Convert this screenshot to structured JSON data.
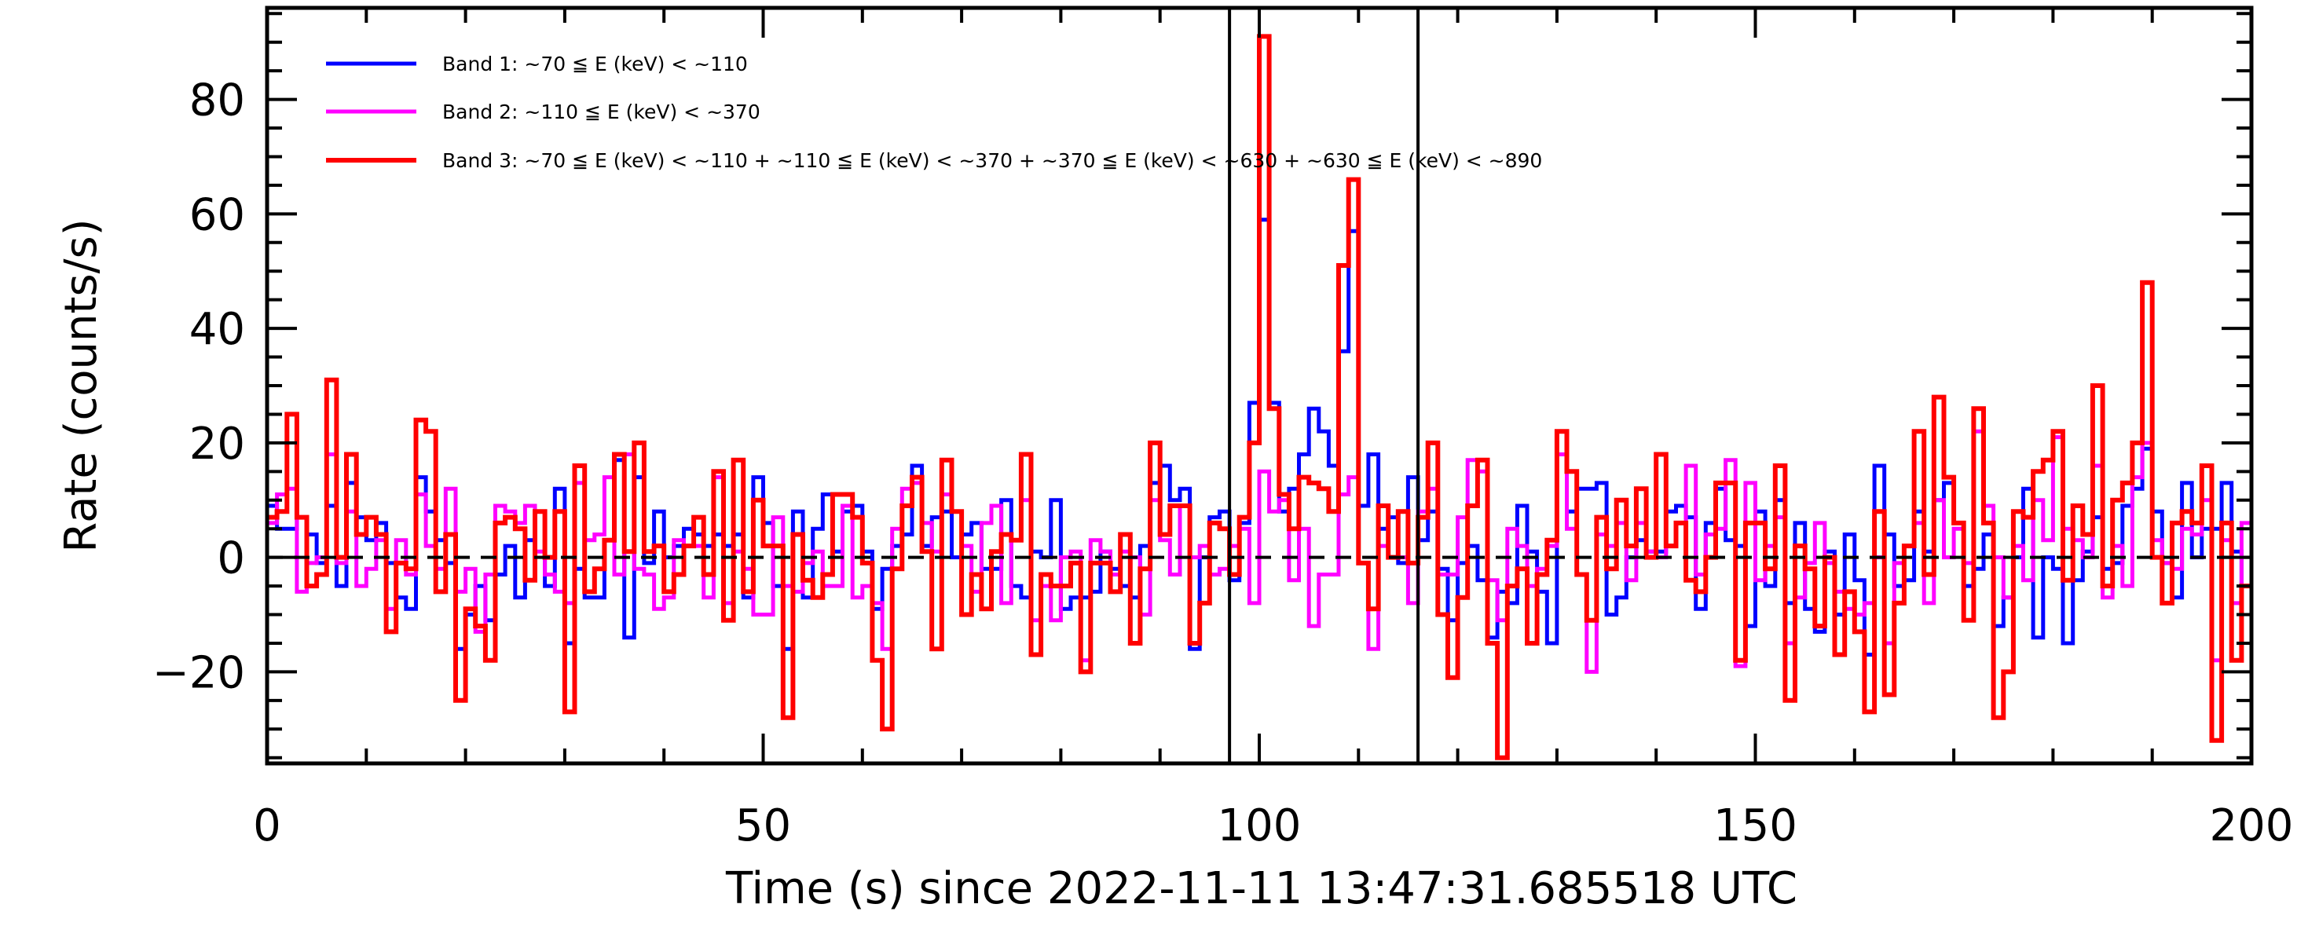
{
  "chart_data": {
    "type": "line",
    "style": "histogram-step",
    "title": "",
    "xlabel": "Time (s) since 2022-11-11 13:47:31.685518 UTC",
    "ylabel": "Rate (counts/s)",
    "xlim": [
      0,
      200
    ],
    "ylim": [
      -36,
      96
    ],
    "bin_width": 1,
    "x_ticks": [
      0,
      50,
      100,
      150,
      200
    ],
    "x_tick_labels": [
      "0",
      "50",
      "100",
      "150",
      "200"
    ],
    "x_minor_step": 10,
    "y_ticks": [
      -20,
      0,
      20,
      40,
      60,
      80
    ],
    "y_tick_labels": [
      "−20",
      "0",
      "20",
      "40",
      "60",
      "80"
    ],
    "y_minor_step": 5,
    "grid": false,
    "legend_position": "top-left",
    "reference_lines": {
      "horizontal_dashed_y": 0,
      "vertical_x": [
        97,
        116
      ]
    },
    "series": [
      {
        "name": "Band 1: ~70 ≦ E (keV) < ~110",
        "color": "#0000ff",
        "values": [
          9,
          5,
          5,
          7,
          4,
          -1,
          9,
          -5,
          13,
          7,
          3,
          6,
          -1,
          -7,
          -9,
          14,
          8,
          3,
          -1,
          -16,
          -10,
          -5,
          -11,
          -3,
          2,
          -7,
          3,
          8,
          -5,
          12,
          -15,
          -2,
          -7,
          -7,
          3,
          17,
          -14,
          14,
          -1,
          8,
          0,
          2,
          5,
          4,
          2,
          4,
          2,
          4,
          -7,
          14,
          6,
          -5,
          -16,
          8,
          -7,
          5,
          11,
          1,
          8,
          9,
          1,
          -9,
          -2,
          2,
          4,
          16,
          2,
          7,
          8,
          0,
          4,
          6,
          -2,
          -2,
          10,
          -5,
          -7,
          1,
          0,
          10,
          -9,
          -7,
          -7,
          -6,
          1,
          -2,
          -5,
          -7,
          2,
          13,
          16,
          10,
          12,
          -16,
          0,
          7,
          8,
          -4,
          6,
          27,
          59,
          27,
          8,
          12,
          18,
          26,
          22,
          16,
          36,
          57,
          9,
          18,
          5,
          7,
          -1,
          14,
          3,
          8,
          -2,
          -11,
          -1,
          2,
          -4,
          -14,
          -6,
          -8,
          9,
          1,
          -6,
          -15,
          18,
          8,
          12,
          12,
          13,
          -10,
          -7,
          0,
          3,
          1,
          1,
          8,
          9,
          7,
          -9,
          6,
          12,
          3,
          2,
          -12,
          8,
          -5,
          10,
          -8,
          6,
          -9,
          -13,
          1,
          -10,
          4,
          -4,
          -17,
          16,
          4,
          -5,
          -4,
          8,
          1,
          10,
          13,
          6,
          -5,
          -2,
          4,
          -12,
          -7,
          0,
          12,
          -14,
          0,
          -2,
          -15,
          -4,
          1,
          7,
          -2,
          -1,
          9,
          12,
          19,
          8,
          -1,
          -7,
          13,
          0,
          5,
          5,
          13,
          1,
          -5
        ]
      },
      {
        "name": "Band 2: ~110 ≦ E (keV) < ~370",
        "color": "#ff00ff",
        "values": [
          6,
          11,
          12,
          -6,
          -1,
          0,
          18,
          -1,
          8,
          -5,
          -2,
          3,
          -9,
          3,
          -3,
          11,
          2,
          -2,
          12,
          -6,
          -2,
          -13,
          -3,
          9,
          8,
          6,
          9,
          1,
          -3,
          -6,
          -8,
          13,
          3,
          4,
          14,
          -3,
          18,
          -2,
          -3,
          -9,
          -7,
          3,
          2,
          2,
          -7,
          14,
          -8,
          1,
          -2,
          -10,
          -10,
          7,
          -5,
          -6,
          -1,
          1,
          -5,
          -5,
          9,
          -7,
          -5,
          -8,
          -16,
          5,
          12,
          13,
          6,
          1,
          11,
          8,
          2,
          -6,
          6,
          9,
          -8,
          3,
          10,
          -11,
          -5,
          -11,
          0,
          1,
          -18,
          3,
          1,
          -3,
          1,
          0,
          -10,
          10,
          3,
          -3,
          9,
          0,
          2,
          -3,
          -2,
          2,
          5,
          -8,
          15,
          8,
          10,
          -4,
          5,
          -12,
          -3,
          -3,
          11,
          14,
          -1,
          -16,
          2,
          0,
          0,
          -8,
          8,
          12,
          -3,
          -3,
          7,
          17,
          15,
          -4,
          -11,
          5,
          2,
          -5,
          -2,
          2,
          18,
          5,
          -3,
          -20,
          4,
          2,
          6,
          -4,
          6,
          1,
          0,
          2,
          6,
          16,
          -3,
          4,
          5,
          17,
          -19,
          13,
          -4,
          2,
          7,
          -15,
          -7,
          -1,
          6,
          -1,
          -6,
          -9,
          -10,
          -8,
          0,
          -15,
          -1,
          2,
          6,
          -8,
          10,
          0,
          5,
          -1,
          22,
          9,
          0,
          -7,
          2,
          -4,
          10,
          3,
          21,
          5,
          3,
          0,
          16,
          -7,
          2,
          -5,
          14,
          20,
          3,
          -1,
          -2,
          5,
          4,
          10,
          -18,
          3,
          -8,
          6
        ]
      },
      {
        "name": "Band 3: ~70 ≦ E (keV) < ~110 + ~110 ≦ E (keV) < ~370 + ~370 ≦ E (keV) < ~630 + ~630 ≦ E (keV) < ~890",
        "color": "#ff0000",
        "values": [
          7,
          8,
          25,
          7,
          -5,
          -3,
          31,
          0,
          18,
          4,
          7,
          4,
          -13,
          -1,
          -2,
          24,
          22,
          -6,
          4,
          -25,
          -9,
          -12,
          -18,
          6,
          7,
          5,
          -4,
          8,
          0,
          8,
          -27,
          16,
          -6,
          -2,
          3,
          18,
          1,
          20,
          1,
          2,
          -6,
          -3,
          2,
          7,
          -3,
          15,
          -11,
          17,
          -6,
          10,
          2,
          2,
          -28,
          4,
          -4,
          -7,
          -3,
          11,
          11,
          7,
          -1,
          -18,
          -30,
          -2,
          9,
          14,
          1,
          -16,
          17,
          8,
          -10,
          -3,
          -9,
          1,
          4,
          3,
          18,
          -17,
          -3,
          -5,
          -5,
          -1,
          -20,
          -1,
          -1,
          -6,
          4,
          -15,
          -2,
          20,
          4,
          9,
          9,
          -15,
          -8,
          6,
          5,
          -3,
          7,
          20,
          91,
          26,
          11,
          5,
          14,
          13,
          12,
          8,
          51,
          66,
          -1,
          -9,
          9,
          0,
          8,
          -1,
          7,
          20,
          -10,
          -21,
          -7,
          9,
          17,
          -15,
          -35,
          -5,
          -2,
          -15,
          -3,
          3,
          22,
          15,
          -3,
          -11,
          7,
          -2,
          10,
          2,
          12,
          0,
          18,
          2,
          6,
          -4,
          -6,
          0,
          13,
          13,
          -18,
          6,
          6,
          -2,
          16,
          -25,
          2,
          -2,
          -12,
          0,
          -17,
          -6,
          -13,
          -27,
          8,
          -24,
          -8,
          2,
          22,
          -3,
          28,
          14,
          6,
          -11,
          26,
          6,
          -28,
          -20,
          8,
          7,
          15,
          17,
          22,
          -4,
          9,
          4,
          30,
          -5,
          10,
          13,
          20,
          48,
          0,
          -8,
          6,
          8,
          6,
          16,
          -32,
          6,
          -18,
          -5
        ]
      }
    ]
  }
}
